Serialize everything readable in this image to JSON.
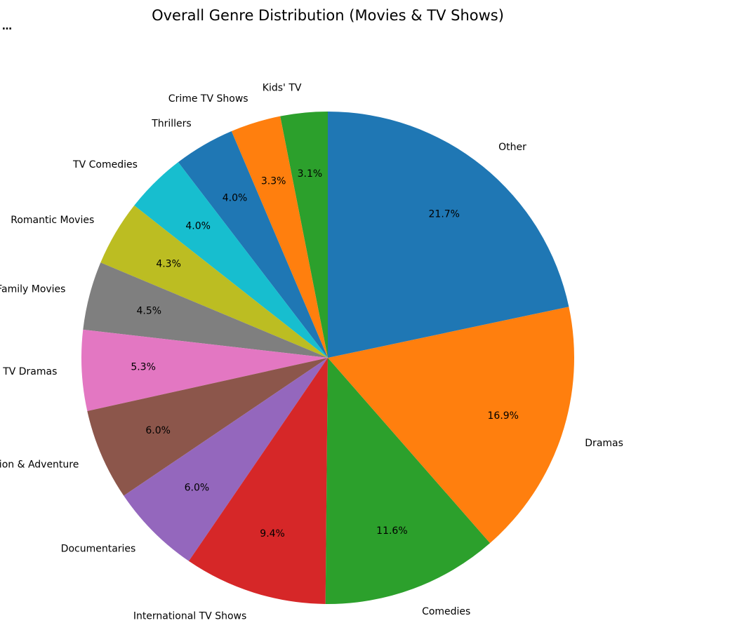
{
  "toolbar": {
    "menu_glyph": "…"
  },
  "chart_data": {
    "type": "pie",
    "title": "Overall Genre Distribution (Movies & TV Shows)",
    "start_angle_deg": 90,
    "direction": "counterclockwise",
    "legend": "none",
    "slices": [
      {
        "label": "Kids' TV",
        "value": 3.1,
        "pct_label": "3.1%",
        "color": "#2ca02c"
      },
      {
        "label": "Crime TV Shows",
        "value": 3.3,
        "pct_label": "3.3%",
        "color": "#ff7f0e"
      },
      {
        "label": "Thrillers",
        "value": 4.0,
        "pct_label": "4.0%",
        "color": "#1f77b4"
      },
      {
        "label": "TV Comedies",
        "value": 4.0,
        "pct_label": "4.0%",
        "color": "#17becf"
      },
      {
        "label": "Romantic Movies",
        "value": 4.3,
        "pct_label": "4.3%",
        "color": "#bcbd22"
      },
      {
        "label": "Children & Family Movies",
        "value": 4.5,
        "pct_label": "4.5%",
        "color": "#7f7f7f"
      },
      {
        "label": "TV Dramas",
        "value": 5.3,
        "pct_label": "5.3%",
        "color": "#e377c2"
      },
      {
        "label": "Action & Adventure",
        "value": 6.0,
        "pct_label": "6.0%",
        "color": "#8c564b"
      },
      {
        "label": "Documentaries",
        "value": 6.0,
        "pct_label": "6.0%",
        "color": "#9467bd"
      },
      {
        "label": "International TV Shows",
        "value": 9.4,
        "pct_label": "9.4%",
        "color": "#d62728"
      },
      {
        "label": "Comedies",
        "value": 11.6,
        "pct_label": "11.6%",
        "color": "#2ca02c"
      },
      {
        "label": "Dramas",
        "value": 16.9,
        "pct_label": "16.9%",
        "color": "#ff7f0e"
      },
      {
        "label": "Other",
        "value": 21.7,
        "pct_label": "21.7%",
        "color": "#1f77b4"
      }
    ]
  }
}
